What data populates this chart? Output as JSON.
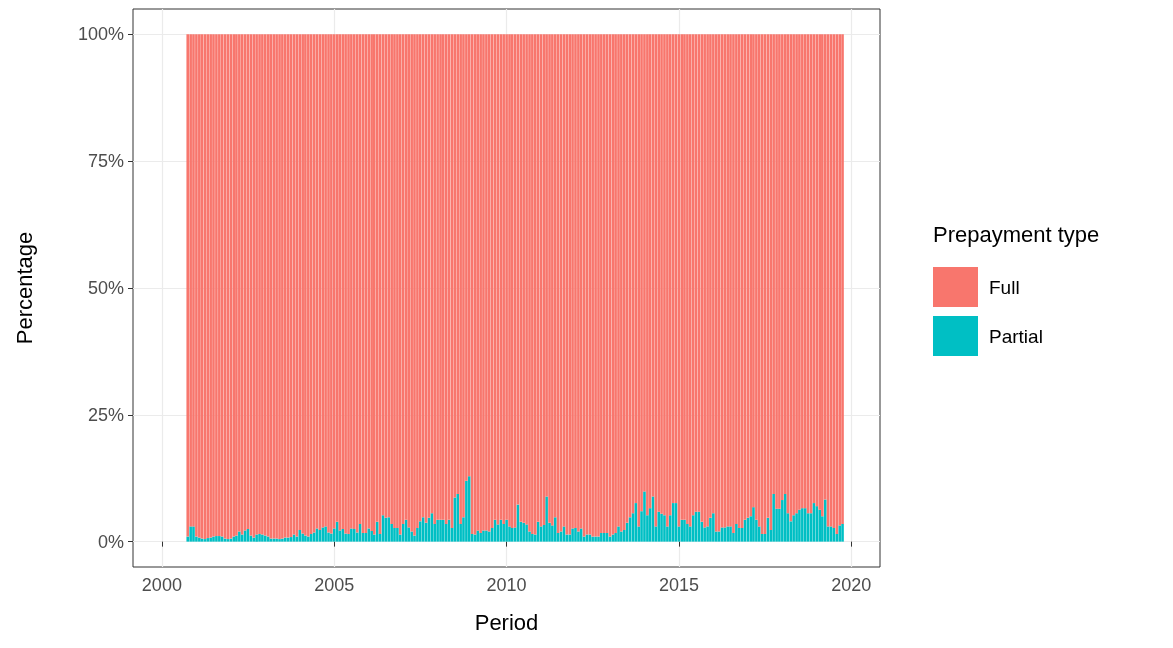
{
  "chart_data": {
    "type": "bar",
    "stacked": true,
    "xlabel": "Period",
    "ylabel": "Percentage",
    "legend_title": "Prepayment type",
    "legend": "right",
    "grid": true,
    "x": [
      "2000-10",
      "2000-11",
      "2000-12",
      "2001-01",
      "2001-02",
      "2001-03",
      "2001-04",
      "2001-05",
      "2001-06",
      "2001-07",
      "2001-08",
      "2001-09",
      "2001-10",
      "2001-11",
      "2001-12",
      "2002-01",
      "2002-02",
      "2002-03",
      "2002-04",
      "2002-05",
      "2002-06",
      "2002-07",
      "2002-08",
      "2002-09",
      "2002-10",
      "2002-11",
      "2002-12",
      "2003-01",
      "2003-02",
      "2003-03",
      "2003-04",
      "2003-05",
      "2003-06",
      "2003-07",
      "2003-08",
      "2003-09",
      "2003-10",
      "2003-11",
      "2003-12",
      "2004-01",
      "2004-02",
      "2004-03",
      "2004-04",
      "2004-05",
      "2004-06",
      "2004-07",
      "2004-08",
      "2004-09",
      "2004-10",
      "2004-11",
      "2004-12",
      "2005-01",
      "2005-02",
      "2005-03",
      "2005-04",
      "2005-05",
      "2005-06",
      "2005-07",
      "2005-08",
      "2005-09",
      "2005-10",
      "2005-11",
      "2005-12",
      "2006-01",
      "2006-02",
      "2006-03",
      "2006-04",
      "2006-05",
      "2006-06",
      "2006-07",
      "2006-08",
      "2006-09",
      "2006-10",
      "2006-11",
      "2006-12",
      "2007-01",
      "2007-02",
      "2007-03",
      "2007-04",
      "2007-05",
      "2007-06",
      "2007-07",
      "2007-08",
      "2007-09",
      "2007-10",
      "2007-11",
      "2007-12",
      "2008-01",
      "2008-02",
      "2008-03",
      "2008-04",
      "2008-05",
      "2008-06",
      "2008-07",
      "2008-08",
      "2008-09",
      "2008-10",
      "2008-11",
      "2008-12",
      "2009-01",
      "2009-02",
      "2009-03",
      "2009-04",
      "2009-05",
      "2009-06",
      "2009-07",
      "2009-08",
      "2009-09",
      "2009-10",
      "2009-11",
      "2009-12",
      "2010-01",
      "2010-02",
      "2010-03",
      "2010-04",
      "2010-05",
      "2010-06",
      "2010-07",
      "2010-08",
      "2010-09",
      "2010-10",
      "2010-11",
      "2010-12",
      "2011-01",
      "2011-02",
      "2011-03",
      "2011-04",
      "2011-05",
      "2011-06",
      "2011-07",
      "2011-08",
      "2011-09",
      "2011-10",
      "2011-11",
      "2011-12",
      "2012-01",
      "2012-02",
      "2012-03",
      "2012-04",
      "2012-05",
      "2012-06",
      "2012-07",
      "2012-08",
      "2012-09",
      "2012-10",
      "2012-11",
      "2012-12",
      "2013-01",
      "2013-02",
      "2013-03",
      "2013-04",
      "2013-05",
      "2013-06",
      "2013-07",
      "2013-08",
      "2013-09",
      "2013-10",
      "2013-11",
      "2013-12",
      "2014-01",
      "2014-02",
      "2014-03",
      "2014-04",
      "2014-05",
      "2014-06",
      "2014-07",
      "2014-08",
      "2014-09",
      "2014-10",
      "2014-11",
      "2014-12",
      "2015-01",
      "2015-02",
      "2015-03",
      "2015-04",
      "2015-05",
      "2015-06",
      "2015-07",
      "2015-08",
      "2015-09",
      "2015-10",
      "2015-11",
      "2015-12",
      "2016-01",
      "2016-02",
      "2016-03",
      "2016-04",
      "2016-05",
      "2016-06",
      "2016-07",
      "2016-08",
      "2016-09",
      "2016-10",
      "2016-11",
      "2016-12",
      "2017-01",
      "2017-02",
      "2017-03",
      "2017-04",
      "2017-05",
      "2017-06",
      "2017-07",
      "2017-08",
      "2017-09",
      "2017-10",
      "2017-11",
      "2017-12",
      "2018-01",
      "2018-02",
      "2018-03",
      "2018-04",
      "2018-05",
      "2018-06",
      "2018-07",
      "2018-08",
      "2018-09",
      "2018-10",
      "2018-11",
      "2018-12",
      "2019-01",
      "2019-02",
      "2019-03",
      "2019-04",
      "2019-05",
      "2019-06",
      "2019-07",
      "2019-08",
      "2019-09",
      "2019-10"
    ],
    "xlim": [
      "1999-03",
      "2020-11"
    ],
    "xticks": [
      "2000",
      "2005",
      "2010",
      "2015",
      "2020"
    ],
    "ylim": [
      -5,
      105
    ],
    "yticks": [
      {
        "value": 0,
        "label": "0%"
      },
      {
        "value": 25,
        "label": "25%"
      },
      {
        "value": 50,
        "label": "50%"
      },
      {
        "value": 75,
        "label": "75%"
      },
      {
        "value": 100,
        "label": "100%"
      }
    ],
    "series": [
      {
        "name": "Partial",
        "color": "#00bfc4",
        "values": [
          1,
          3,
          3,
          1,
          0.8,
          0.6,
          0.5,
          0.7,
          0.8,
          1,
          1.1,
          1.1,
          1,
          0.6,
          0.5,
          0.6,
          1,
          1.2,
          2,
          1.4,
          2.2,
          2.5,
          1.2,
          0.8,
          1.4,
          1.5,
          1.4,
          1.2,
          1,
          0.6,
          0.6,
          0.6,
          0.5,
          0.6,
          0.8,
          0.8,
          0.9,
          1.4,
          1,
          2.3,
          1.6,
          1.2,
          1,
          1.5,
          1.8,
          2.6,
          2.3,
          2.8,
          3,
          1.8,
          1.6,
          2.6,
          3.9,
          2.2,
          2.5,
          1.6,
          1.5,
          2.6,
          2.5,
          1.8,
          3.5,
          1.7,
          1.7,
          2.6,
          2.1,
          1.4,
          3.9,
          1.5,
          5.2,
          4.7,
          4.8,
          3.5,
          2.7,
          2.7,
          1.4,
          3.5,
          4.3,
          2.8,
          2,
          1.2,
          2.7,
          4,
          4.8,
          3.7,
          4.7,
          5.6,
          3.5,
          4.3,
          4.3,
          4.3,
          3.5,
          4.3,
          2.7,
          8.7,
          9.4,
          3.5,
          4.8,
          12,
          12.9,
          1.5,
          1.4,
          2.2,
          1.7,
          2.2,
          2.2,
          2,
          2.7,
          4.3,
          3.4,
          4.3,
          3.5,
          4.3,
          3,
          2.7,
          2.8,
          7.3,
          3.9,
          3.7,
          3.4,
          2,
          1.5,
          1.4,
          3.9,
          3,
          3.3,
          8.9,
          3.7,
          3.2,
          4.8,
          1.7,
          2,
          3,
          1.4,
          1.4,
          2.6,
          2.7,
          2,
          2.6,
          1,
          1.4,
          1.4,
          1,
          1,
          1,
          1.7,
          1.7,
          1.7,
          1,
          1.4,
          1.7,
          3,
          2,
          2.3,
          3.7,
          4.8,
          5.6,
          7.6,
          3,
          6,
          9.9,
          5.2,
          6.6,
          8.9,
          3,
          5.9,
          5.5,
          5.2,
          3,
          5.2,
          7.6,
          7.6,
          3,
          4.3,
          4.3,
          3.5,
          3,
          5.2,
          5.9,
          5.9,
          3.9,
          2.8,
          3,
          4.7,
          5.6,
          2,
          2,
          2.8,
          2.8,
          3,
          3,
          1.7,
          3.5,
          2.7,
          2.7,
          4.3,
          4.7,
          5,
          6.8,
          4.3,
          3,
          1.5,
          1.5,
          4.7,
          2.3,
          9.4,
          6.5,
          6.5,
          8.2,
          9.4,
          5.6,
          4,
          5.2,
          5.6,
          6.3,
          6.6,
          6.6,
          5.6,
          5.6,
          7.6,
          7,
          6.3,
          5,
          8.3,
          3,
          3,
          2.7,
          1.5,
          3.2,
          3.5
        ]
      },
      {
        "name": "Full",
        "color": "#f8766d",
        "values": [
          99,
          97,
          97,
          99,
          99.2,
          99.4,
          99.5,
          99.3,
          99.2,
          99,
          98.9,
          98.9,
          99,
          99.4,
          99.5,
          99.4,
          99,
          98.8,
          98,
          98.6,
          97.8,
          97.5,
          98.8,
          99.2,
          98.6,
          98.5,
          98.6,
          98.8,
          99,
          99.4,
          99.4,
          99.4,
          99.5,
          99.4,
          99.2,
          99.2,
          99.1,
          98.6,
          99,
          97.7,
          98.4,
          98.8,
          99,
          98.5,
          98.2,
          97.4,
          97.7,
          97.2,
          97,
          98.2,
          98.4,
          97.4,
          96.1,
          97.8,
          97.5,
          98.4,
          98.5,
          97.4,
          97.5,
          98.2,
          96.5,
          98.3,
          98.3,
          97.4,
          97.9,
          98.6,
          96.1,
          98.5,
          94.8,
          95.3,
          95.2,
          96.5,
          97.3,
          97.3,
          98.6,
          96.5,
          95.7,
          97.2,
          98,
          98.8,
          97.3,
          96,
          95.2,
          96.3,
          95.3,
          94.4,
          96.5,
          95.7,
          95.7,
          95.7,
          96.5,
          95.7,
          97.3,
          91.3,
          90.6,
          96.5,
          95.2,
          88,
          87.1,
          98.5,
          98.6,
          97.8,
          98.3,
          97.8,
          97.8,
          98,
          97.3,
          95.7,
          96.6,
          95.7,
          96.5,
          95.7,
          97,
          97.3,
          97.2,
          92.7,
          96.1,
          96.3,
          96.6,
          98,
          98.5,
          98.6,
          96.1,
          97,
          96.7,
          91.1,
          96.3,
          96.8,
          95.2,
          98.3,
          98,
          97,
          98.6,
          98.6,
          97.4,
          97.3,
          98,
          97.4,
          99,
          98.6,
          98.6,
          99,
          99,
          99,
          98.3,
          98.3,
          98.3,
          99,
          98.6,
          98.3,
          97,
          98,
          97.7,
          96.3,
          95.2,
          94.4,
          92.4,
          97,
          94,
          90.1,
          94.8,
          93.4,
          91.1,
          97,
          94.1,
          94.5,
          94.8,
          97,
          94.8,
          92.4,
          92.4,
          97,
          95.7,
          95.7,
          96.5,
          97,
          94.8,
          94.1,
          94.1,
          96.1,
          97.2,
          97,
          95.3,
          94.4,
          98,
          98,
          97.2,
          97.2,
          97,
          97,
          98.3,
          96.5,
          97.3,
          97.3,
          95.7,
          95.3,
          95,
          93.2,
          95.7,
          97,
          98.5,
          98.5,
          95.3,
          97.7,
          90.6,
          93.5,
          93.5,
          91.8,
          90.6,
          94.4,
          96,
          94.8,
          94.4,
          93.7,
          93.4,
          93.4,
          94.4,
          94.4,
          92.4,
          93,
          93.7,
          95,
          91.7,
          97,
          97,
          97.3,
          98.5,
          96.8,
          96.5
        ]
      }
    ]
  }
}
